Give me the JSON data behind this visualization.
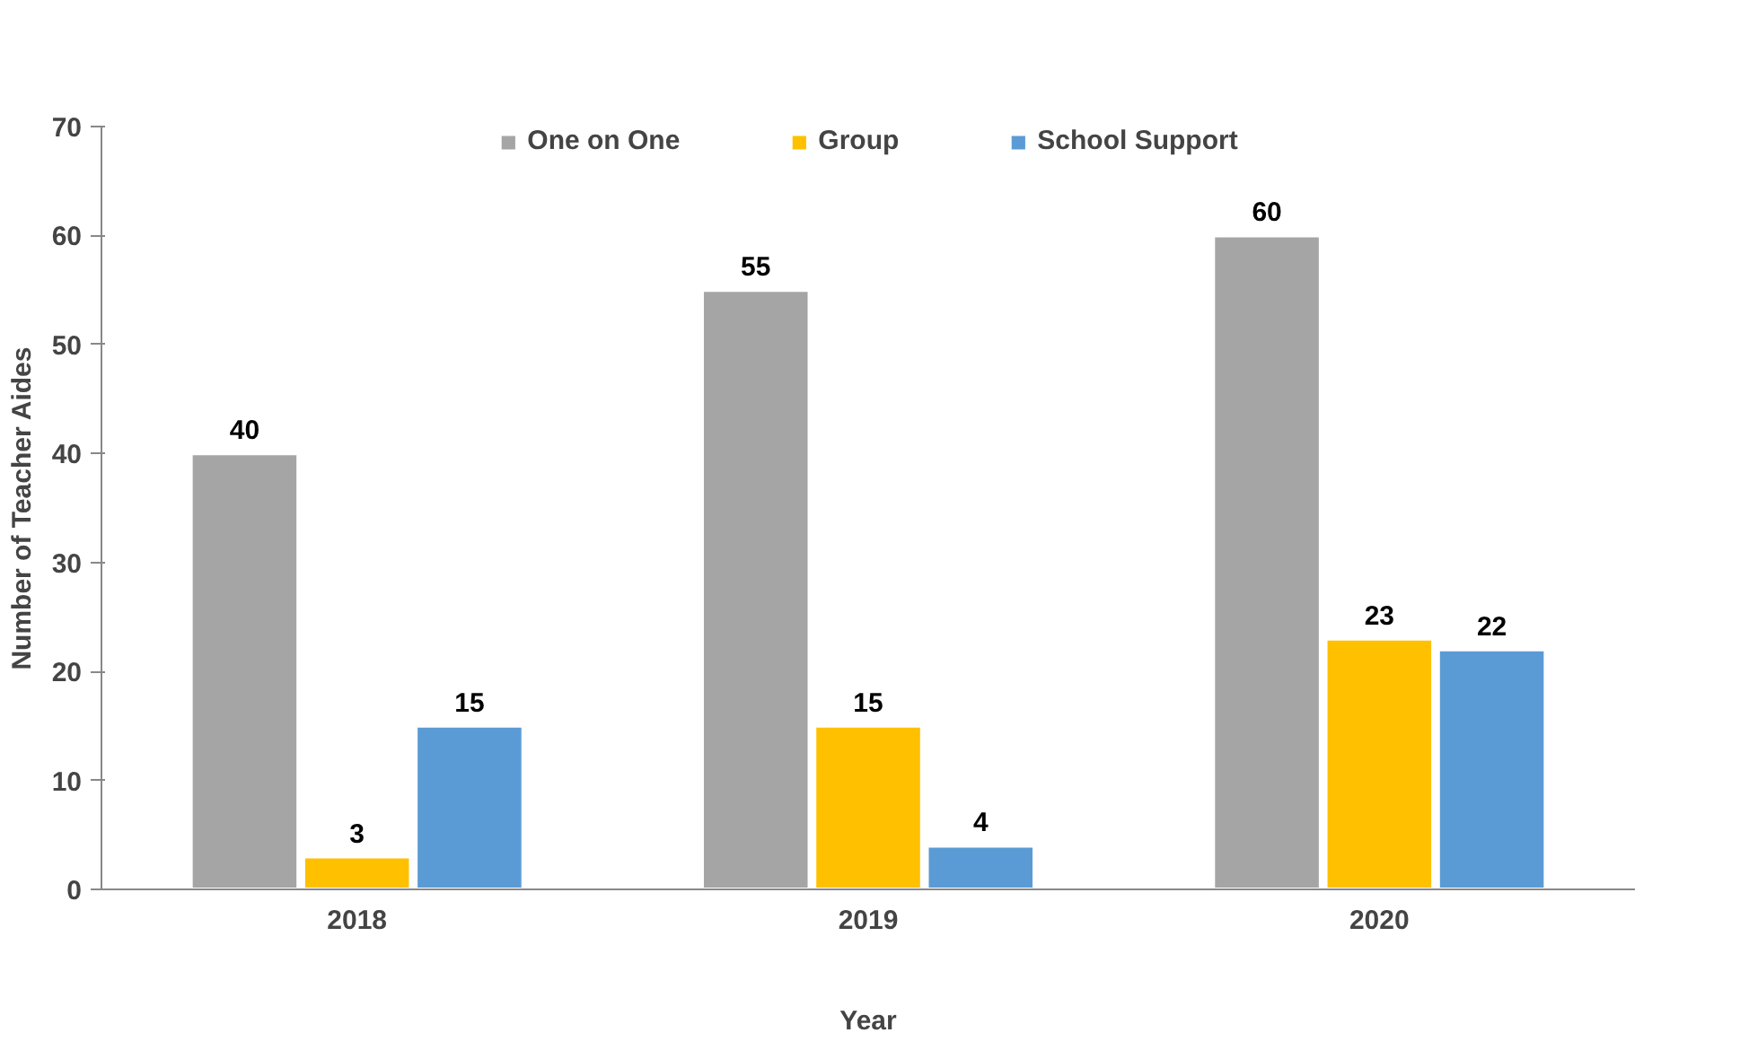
{
  "chart_data": {
    "type": "bar",
    "xlabel": "Year",
    "ylabel": "Number of Teacher Aides",
    "categories": [
      "2018",
      "2019",
      "2020"
    ],
    "series": [
      {
        "name": "One on One",
        "color": "#a5a5a5",
        "values": [
          40,
          55,
          60
        ]
      },
      {
        "name": "Group",
        "color": "#ffc000",
        "values": [
          3,
          15,
          23
        ]
      },
      {
        "name": "School Support",
        "color": "#5b9bd5",
        "values": [
          15,
          4,
          22
        ]
      }
    ],
    "ylim": [
      0,
      70
    ],
    "yticks": [
      0,
      10,
      20,
      30,
      40,
      50,
      60,
      70
    ],
    "grid": false,
    "legend": "top",
    "data_labels": true
  }
}
